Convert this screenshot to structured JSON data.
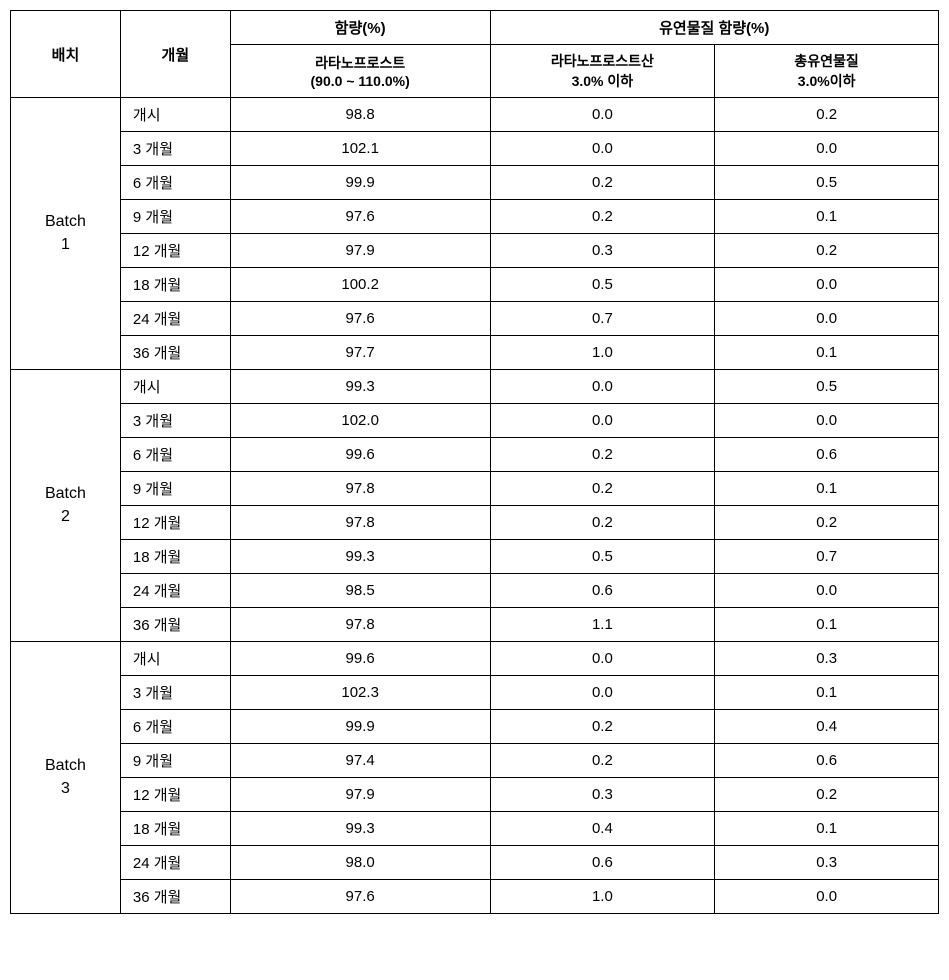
{
  "table": {
    "headers": {
      "batch": "배치",
      "month": "개월",
      "content_group": "함량(%)",
      "impurity_group": "유연물질 함량(%)",
      "content_sub": "라타노프로스트\n(90.0 ~ 110.0%)",
      "impurity_sub1": "라타노프로스트산\n3.0% 이하",
      "impurity_sub2": "총유연물질\n3.0%이하"
    },
    "batches": [
      {
        "label": "Batch\n1",
        "rows": [
          {
            "month": "개시",
            "content": "98.8",
            "imp1": "0.0",
            "imp2": "0.2"
          },
          {
            "month": "3 개월",
            "content": "102.1",
            "imp1": "0.0",
            "imp2": "0.0"
          },
          {
            "month": "6 개월",
            "content": "99.9",
            "imp1": "0.2",
            "imp2": "0.5"
          },
          {
            "month": "9 개월",
            "content": "97.6",
            "imp1": "0.2",
            "imp2": "0.1"
          },
          {
            "month": "12 개월",
            "content": "97.9",
            "imp1": "0.3",
            "imp2": "0.2"
          },
          {
            "month": "18 개월",
            "content": "100.2",
            "imp1": "0.5",
            "imp2": "0.0"
          },
          {
            "month": "24 개월",
            "content": "97.6",
            "imp1": "0.7",
            "imp2": "0.0"
          },
          {
            "month": "36 개월",
            "content": "97.7",
            "imp1": "1.0",
            "imp2": "0.1"
          }
        ]
      },
      {
        "label": "Batch\n2",
        "rows": [
          {
            "month": "개시",
            "content": "99.3",
            "imp1": "0.0",
            "imp2": "0.5"
          },
          {
            "month": "3 개월",
            "content": "102.0",
            "imp1": "0.0",
            "imp2": "0.0"
          },
          {
            "month": "6 개월",
            "content": "99.6",
            "imp1": "0.2",
            "imp2": "0.6"
          },
          {
            "month": "9 개월",
            "content": "97.8",
            "imp1": "0.2",
            "imp2": "0.1"
          },
          {
            "month": "12 개월",
            "content": "97.8",
            "imp1": "0.2",
            "imp2": "0.2"
          },
          {
            "month": "18 개월",
            "content": "99.3",
            "imp1": "0.5",
            "imp2": "0.7"
          },
          {
            "month": "24 개월",
            "content": "98.5",
            "imp1": "0.6",
            "imp2": "0.0"
          },
          {
            "month": "36 개월",
            "content": "97.8",
            "imp1": "1.1",
            "imp2": "0.1"
          }
        ]
      },
      {
        "label": "Batch\n3",
        "rows": [
          {
            "month": "개시",
            "content": "99.6",
            "imp1": "0.0",
            "imp2": "0.3"
          },
          {
            "month": "3 개월",
            "content": "102.3",
            "imp1": "0.0",
            "imp2": "0.1"
          },
          {
            "month": "6 개월",
            "content": "99.9",
            "imp1": "0.2",
            "imp2": "0.4"
          },
          {
            "month": "9 개월",
            "content": "97.4",
            "imp1": "0.2",
            "imp2": "0.6"
          },
          {
            "month": "12 개월",
            "content": "97.9",
            "imp1": "0.3",
            "imp2": "0.2"
          },
          {
            "month": "18 개월",
            "content": "99.3",
            "imp1": "0.4",
            "imp2": "0.1"
          },
          {
            "month": "24 개월",
            "content": "98.0",
            "imp1": "0.6",
            "imp2": "0.3"
          },
          {
            "month": "36 개월",
            "content": "97.6",
            "imp1": "1.0",
            "imp2": "0.0"
          }
        ]
      }
    ]
  },
  "style": {
    "border_color": "#000000",
    "background_color": "#ffffff",
    "text_color": "#000000",
    "header_fontsize": 15,
    "cell_fontsize": 15,
    "subheader_fontsize": 14,
    "font_family": "Malgun Gothic"
  }
}
